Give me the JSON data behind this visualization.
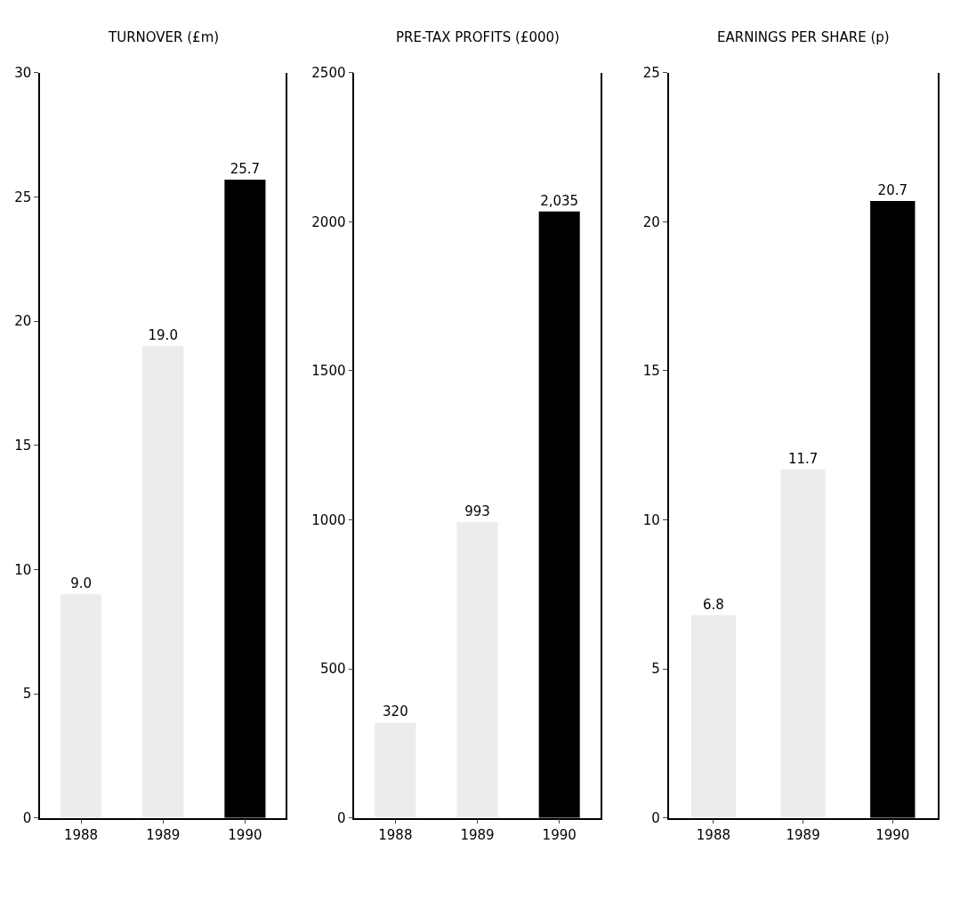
{
  "chart_data": [
    {
      "type": "bar",
      "title": "TURNOVER (£m)",
      "categories": [
        "1988",
        "1989",
        "1990"
      ],
      "values": [
        9.0,
        19.0,
        25.7
      ],
      "value_labels": [
        "9.0",
        "19.0",
        "25.7"
      ],
      "colors": [
        "#ececec",
        "#ececec",
        "#000000"
      ],
      "ylim": [
        0,
        30
      ],
      "yticks": [
        0,
        5,
        10,
        15,
        20,
        25,
        30
      ]
    },
    {
      "type": "bar",
      "title": "PRE-TAX PROFITS (£000)",
      "categories": [
        "1988",
        "1989",
        "1990"
      ],
      "values": [
        320,
        993,
        2035
      ],
      "value_labels": [
        "320",
        "993",
        "2,035"
      ],
      "colors": [
        "#ececec",
        "#ececec",
        "#000000"
      ],
      "ylim": [
        0,
        2500
      ],
      "yticks": [
        0,
        500,
        1000,
        1500,
        2000,
        2500
      ]
    },
    {
      "type": "bar",
      "title": "EARNINGS PER SHARE (p)",
      "categories": [
        "1988",
        "1989",
        "1990"
      ],
      "values": [
        6.8,
        11.7,
        20.7
      ],
      "value_labels": [
        "6.8",
        "11.7",
        "20.7"
      ],
      "colors": [
        "#ececec",
        "#ececec",
        "#000000"
      ],
      "ylim": [
        0,
        25
      ],
      "yticks": [
        0,
        5,
        10,
        15,
        20,
        25
      ]
    }
  ]
}
